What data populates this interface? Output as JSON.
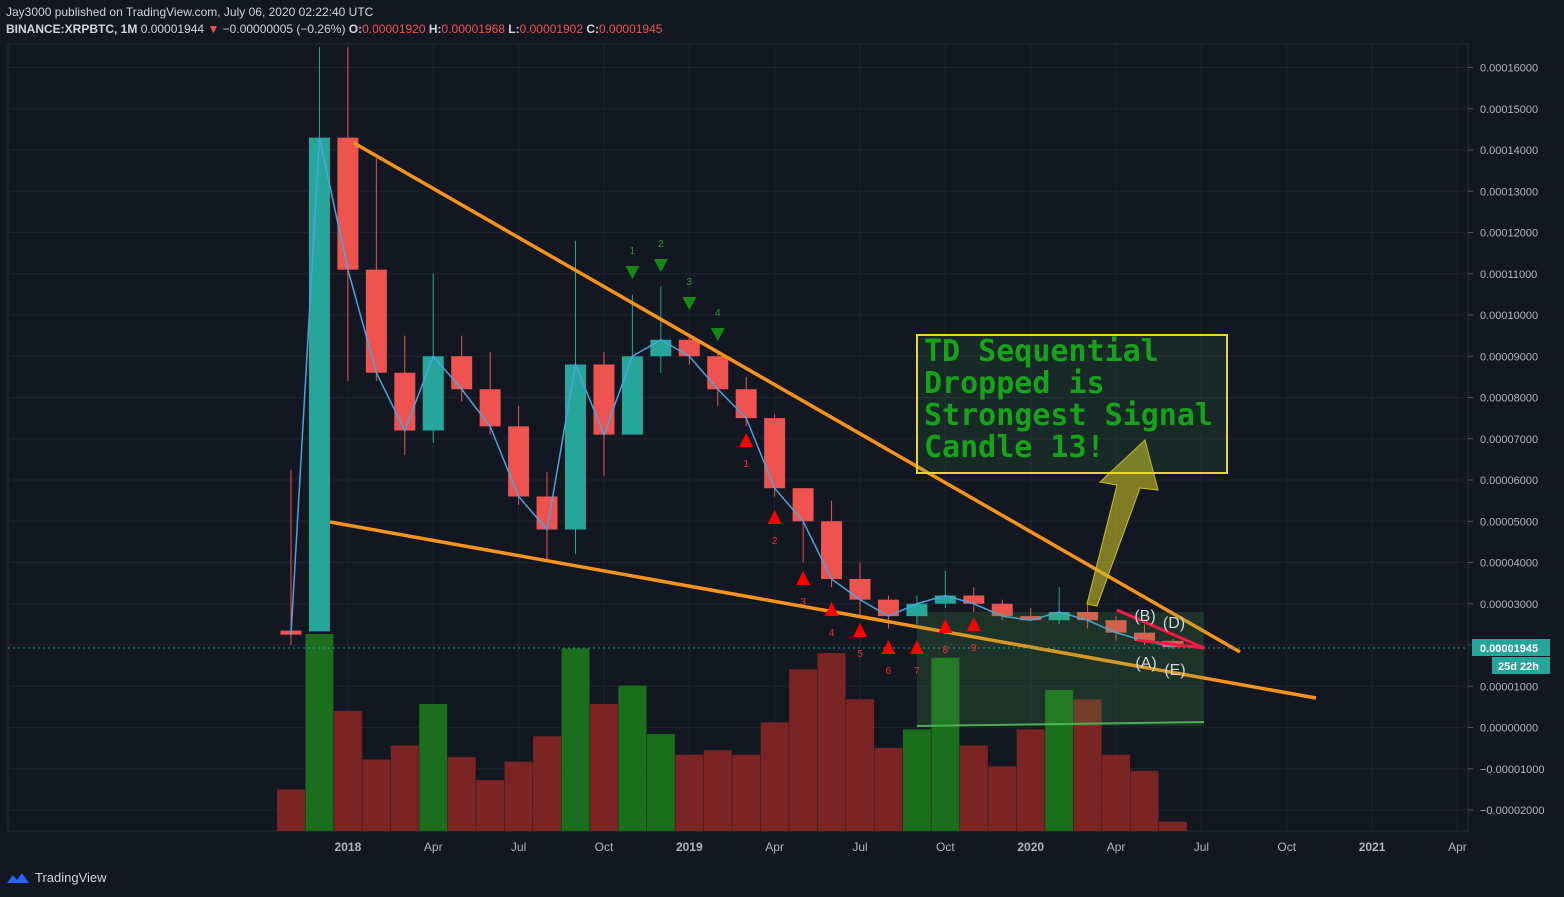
{
  "header": {
    "line1": "Jay3000 published on TradingView.com, July 06, 2020 02:22:40 UTC",
    "symbol": "BINANCE:XRPBTC, 1M",
    "last": "0.00001944",
    "change": "−0.00000005 (−0.26%)",
    "o_label": "O:",
    "o": "0.00001920",
    "h_label": "H:",
    "h": "0.00001968",
    "l_label": "L:",
    "l": "0.00001902",
    "c_label": "C:",
    "c": "0.00001945"
  },
  "footer": {
    "brand": "TradingView"
  },
  "price_label": "0.00001945",
  "countdown": "25d 22h",
  "annotation": [
    "TD Sequential",
    "Dropped is",
    "Strongest Signal",
    "Candle 13!"
  ],
  "wave_labels": [
    "(B)",
    "(D)",
    "(A)",
    "(E)"
  ],
  "colors": {
    "bg": "#131722",
    "up": "#26a69a",
    "down": "#ef5350",
    "trend": "#f7931a",
    "vol_up": "#1b6e1b",
    "vol_down": "#7b2424"
  },
  "chart_data": {
    "type": "candlestick",
    "ylim": [
      -2.5e-05,
      0.000165
    ],
    "y_ticks": [
      "0.00016000",
      "0.00015000",
      "0.00014000",
      "0.00013000",
      "0.00012000",
      "0.00011000",
      "0.00010000",
      "0.00009000",
      "0.00008000",
      "0.00007000",
      "0.00006000",
      "0.00005000",
      "0.00004000",
      "0.00003000",
      "0.00002000",
      "0.00001000",
      "0.00000000",
      "−0.00001000",
      "−0.00002000"
    ],
    "x_labels": [
      "2018",
      "Apr",
      "Jul",
      "Oct",
      "2019",
      "Apr",
      "Jul",
      "Oct",
      "2020",
      "Apr",
      "Jul",
      "Oct",
      "2021",
      "Apr"
    ],
    "ohlc": [
      [
        2.35e-05,
        6.25e-05,
        2e-05,
        2.25e-05
      ],
      [
        2.33e-05,
        0.000165,
        2.35e-05,
        0.000143
      ],
      [
        0.000143,
        0.000165,
        8.4e-05,
        0.000111
      ],
      [
        0.000111,
        0.000138,
        8.4e-05,
        8.6e-05
      ],
      [
        8.6e-05,
        9.5e-05,
        6.6e-05,
        7.2e-05
      ],
      [
        7.2e-05,
        0.00011,
        6.9e-05,
        9e-05
      ],
      [
        9e-05,
        9.5e-05,
        7.9e-05,
        8.2e-05
      ],
      [
        8.2e-05,
        9.1e-05,
        7.1e-05,
        7.3e-05
      ],
      [
        7.3e-05,
        7.8e-05,
        5.4e-05,
        5.6e-05
      ],
      [
        5.6e-05,
        6.2e-05,
        4e-05,
        4.8e-05
      ],
      [
        4.8e-05,
        0.000118,
        4.2e-05,
        8.8e-05
      ],
      [
        8.8e-05,
        9.1e-05,
        6.1e-05,
        7.1e-05
      ],
      [
        7.1e-05,
        0.000105,
        7.1e-05,
        9e-05
      ],
      [
        9e-05,
        0.000107,
        8.6e-05,
        9.4e-05
      ],
      [
        9.4e-05,
        9.5e-05,
        8.8e-05,
        9e-05
      ],
      [
        9e-05,
        9.1e-05,
        7.8e-05,
        8.2e-05
      ],
      [
        8.2e-05,
        8.5e-05,
        7.3e-05,
        7.5e-05
      ],
      [
        7.5e-05,
        7.6e-05,
        5.6e-05,
        5.8e-05
      ],
      [
        5.8e-05,
        5.8e-05,
        4e-05,
        5e-05
      ],
      [
        5e-05,
        5.5e-05,
        3.4e-05,
        3.6e-05
      ],
      [
        3.6e-05,
        4e-05,
        2.7e-05,
        3.1e-05
      ],
      [
        3.1e-05,
        3.2e-05,
        2.4e-05,
        2.7e-05
      ],
      [
        2.7e-05,
        3.2e-05,
        2.5e-05,
        3e-05
      ],
      [
        3e-05,
        3.8e-05,
        2.9e-05,
        3.2e-05
      ],
      [
        3.2e-05,
        3.4e-05,
        2.8e-05,
        3e-05
      ],
      [
        3e-05,
        3.1e-05,
        2.6e-05,
        2.7e-05
      ],
      [
        2.7e-05,
        2.9e-05,
        2.6e-05,
        2.6e-05
      ],
      [
        2.6e-05,
        3.4e-05,
        2.5e-05,
        2.8e-05
      ],
      [
        2.8e-05,
        3e-05,
        2.4e-05,
        2.6e-05
      ],
      [
        2.6e-05,
        2.7e-05,
        2.1e-05,
        2.3e-05
      ],
      [
        2.3e-05,
        2.5e-05,
        2e-05,
        2.1e-05
      ],
      [
        2.1e-05,
        2.15e-05,
        1.9e-05,
        1.95e-05
      ]
    ],
    "volume": [
      0.18,
      1.0,
      0.52,
      0.31,
      0.37,
      0.55,
      0.32,
      0.22,
      0.3,
      0.41,
      0.79,
      0.55,
      0.63,
      0.42,
      0.33,
      0.35,
      0.33,
      0.47,
      0.7,
      0.77,
      0.57,
      0.36,
      0.44,
      0.75,
      0.37,
      0.28,
      0.44,
      0.61,
      0.57,
      0.33,
      0.26,
      0.04
    ],
    "td_sell": [
      1,
      2,
      3,
      4
    ],
    "td_buy": [
      1,
      2,
      3,
      4,
      5,
      6,
      7,
      8,
      9
    ]
  }
}
